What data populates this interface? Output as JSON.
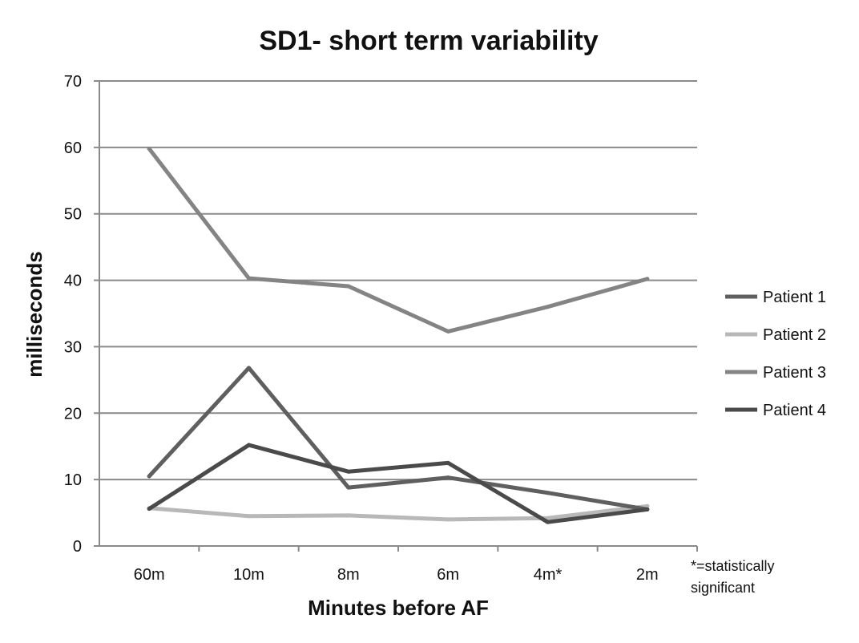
{
  "chart_data": {
    "type": "line",
    "title": "SD1- short term variability",
    "xlabel": "Minutes before AF",
    "ylabel": "milliseconds",
    "categories": [
      "60m",
      "10m",
      "8m",
      "6m",
      "4m*",
      "2m"
    ],
    "ylim": [
      0,
      70
    ],
    "yticks": [
      0,
      10,
      20,
      30,
      40,
      50,
      60,
      70
    ],
    "grid": true,
    "legend": "right",
    "note": [
      "*=statistically",
      "significant"
    ],
    "series": [
      {
        "name": "Patient 1",
        "color": "#5f5f5f",
        "values": [
          10.5,
          26.8,
          8.8,
          10.3,
          8.0,
          5.5
        ]
      },
      {
        "name": "Patient 2",
        "color": "#b8b8b8",
        "values": [
          5.7,
          4.5,
          4.6,
          4.0,
          4.2,
          6.0
        ]
      },
      {
        "name": "Patient 3",
        "color": "#848484",
        "values": [
          59.8,
          40.3,
          39.1,
          32.3,
          36.0,
          40.2
        ]
      },
      {
        "name": "Patient 4",
        "color": "#4a4a4a",
        "values": [
          5.6,
          15.2,
          11.2,
          12.5,
          3.6,
          5.5
        ]
      }
    ]
  }
}
